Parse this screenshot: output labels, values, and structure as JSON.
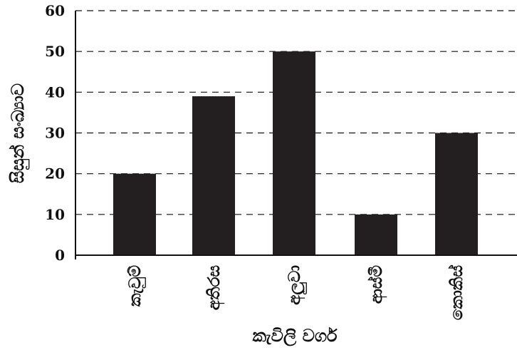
{
  "chart_data": {
    "type": "bar",
    "title": "",
    "xlabel": "කැවිලි වර්ග",
    "ylabel": "සිසුන් සංඛ්‍යාව",
    "categories": [
      "කැවුම්",
      "අතිරස",
      "අලුවා",
      "ආස්මී",
      "කොකිස්"
    ],
    "values": [
      20,
      39,
      50,
      10,
      30
    ],
    "ylim": [
      0,
      60
    ],
    "yticks": [
      0,
      10,
      20,
      30,
      40,
      50,
      60
    ],
    "ytick_labels": [
      "0",
      "10",
      "20",
      "30",
      "40",
      "50",
      "60"
    ],
    "grid": true,
    "grid_style": "dashed",
    "legend": "none",
    "bar_color": "#231f20"
  }
}
